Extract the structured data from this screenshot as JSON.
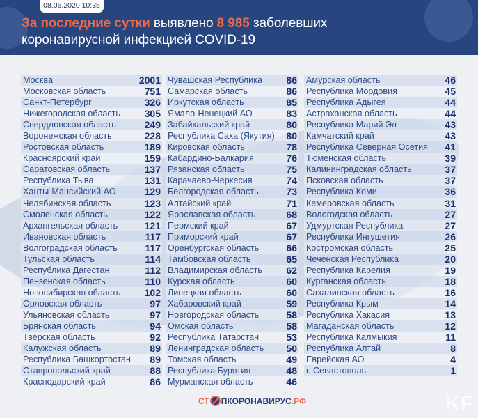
{
  "header": {
    "date": "08.06.2020 10:35",
    "title_highlight": "За последние сутки",
    "title_mid": " выявлено ",
    "title_count": "8 985",
    "title_rest": " заболевших",
    "title_line2": "коронавирусной инфекцией COVID-19"
  },
  "colors": {
    "header_bg": "#27457f",
    "accent": "#ee6a4a",
    "text": "#2e4b86",
    "value": "#1a2f6b"
  },
  "columns": [
    [
      [
        "Москва",
        "2001"
      ],
      [
        "Московская область",
        "751"
      ],
      [
        "Санкт-Петербург",
        "326"
      ],
      [
        "Нижегородская область",
        "305"
      ],
      [
        "Свердловская область",
        "249"
      ],
      [
        "Воронежская область",
        "228"
      ],
      [
        "Ростовская область",
        "189"
      ],
      [
        "Красноярский край",
        "159"
      ],
      [
        "Саратовская область",
        "137"
      ],
      [
        "Республика Тыва",
        "131"
      ],
      [
        "Ханты-Мансийский АО",
        "129"
      ],
      [
        "Челябинская область",
        "123"
      ],
      [
        "Смоленская область",
        "122"
      ],
      [
        "Архангельская область",
        "121"
      ],
      [
        "Ивановская область",
        "117"
      ],
      [
        "Волгоградская область",
        "117"
      ],
      [
        "Тульская область",
        "114"
      ],
      [
        "Республика Дагестан",
        "112"
      ],
      [
        "Пензенская область",
        "110"
      ],
      [
        "Новосибирская область",
        "102"
      ],
      [
        "Орловская область",
        "97"
      ],
      [
        "Ульяновская область",
        "97"
      ],
      [
        "Брянская область",
        "94"
      ],
      [
        "Тверская область",
        "92"
      ],
      [
        "Калужская область",
        "89"
      ],
      [
        "Республика Башкортостан",
        "89"
      ],
      [
        "Ставропольский край",
        "88"
      ],
      [
        "Краснодарский край",
        "86"
      ]
    ],
    [
      [
        "Чувашская Республика",
        "86"
      ],
      [
        "Самарская область",
        "86"
      ],
      [
        "Иркутская область",
        "85"
      ],
      [
        "Ямало-Ненецкий АО",
        "83"
      ],
      [
        "Забайкальский край",
        "80"
      ],
      [
        "Республика Саха (Якутия)",
        "80"
      ],
      [
        "Кировская область",
        "78"
      ],
      [
        "Кабардино-Балкария",
        "76"
      ],
      [
        "Рязанская область",
        "75"
      ],
      [
        "Карачаево-Черкесия",
        "74"
      ],
      [
        "Белгородская область",
        "73"
      ],
      [
        "Алтайский край",
        "71"
      ],
      [
        "Ярославская область",
        "68"
      ],
      [
        "Пермский край",
        "67"
      ],
      [
        "Приморский край",
        "67"
      ],
      [
        "Оренбургская область",
        "66"
      ],
      [
        "Тамбовская область",
        "65"
      ],
      [
        "Владимирская область",
        "62"
      ],
      [
        "Курская область",
        "60"
      ],
      [
        "Липецкая область",
        "60"
      ],
      [
        "Хабаровский край",
        "59"
      ],
      [
        "Новгородская область",
        "58"
      ],
      [
        "Омская область",
        "58"
      ],
      [
        "Республика Татарстан",
        "53"
      ],
      [
        "Ленинградская область",
        "50"
      ],
      [
        "Томская область",
        "49"
      ],
      [
        "Республика Бурятия",
        "48"
      ],
      [
        "Мурманская область",
        "46"
      ]
    ],
    [
      [
        "Амурская область",
        "46"
      ],
      [
        "Республика Мордовия",
        "45"
      ],
      [
        "Республика Адыгея",
        "44"
      ],
      [
        "Астраханская область",
        "44"
      ],
      [
        "Республика Марий Эл",
        "43"
      ],
      [
        "Камчатский край",
        "43"
      ],
      [
        "Республика Северная Осетия",
        "41"
      ],
      [
        "Тюменская область",
        "39"
      ],
      [
        "Калининградская область",
        "37"
      ],
      [
        "Псковская область",
        "37"
      ],
      [
        "Республика Коми",
        "36"
      ],
      [
        "Кемеровская область",
        "31"
      ],
      [
        "Вологодская область",
        "27"
      ],
      [
        "Удмуртская Республика",
        "27"
      ],
      [
        "Республика Ингушетия",
        "26"
      ],
      [
        "Костромская область",
        "25"
      ],
      [
        "Чеченская Республика",
        "20"
      ],
      [
        "Республика Карелия",
        "19"
      ],
      [
        "Курганская область",
        "18"
      ],
      [
        "Сахалинская область",
        "16"
      ],
      [
        "Республика Крым",
        "14"
      ],
      [
        "Республика Хакасия",
        "13"
      ],
      [
        "Магаданская область",
        "12"
      ],
      [
        "Республика Калмыкия",
        "11"
      ],
      [
        "Республика Алтай",
        "8"
      ],
      [
        "Еврейская АО",
        "4"
      ],
      [
        "г. Севастополь",
        "1"
      ]
    ]
  ],
  "footer": {
    "logo_pre": "СТ",
    "logo_post": "ПКОРОНАВИРУС",
    "logo_tld": ".РФ",
    "watermark": "KF",
    "logo_icon": "stop-virus-icon"
  }
}
